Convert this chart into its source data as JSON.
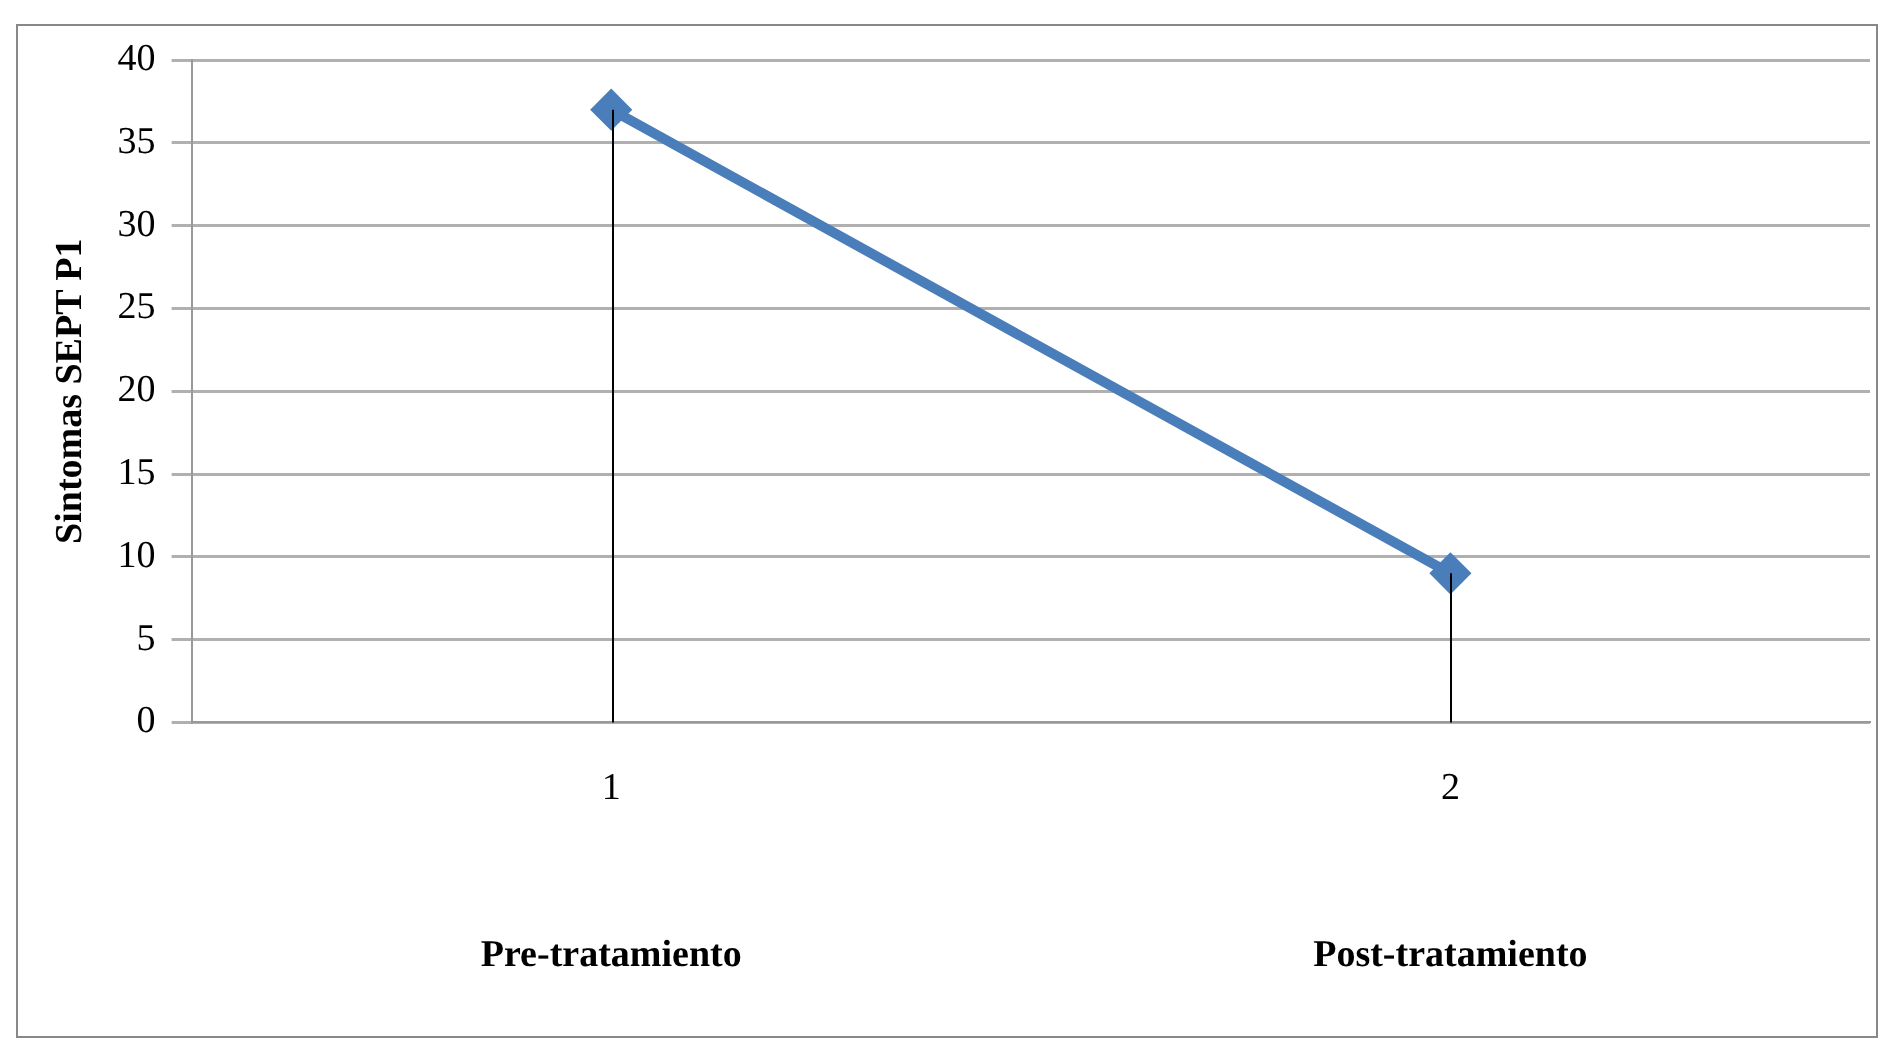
{
  "chart_data": {
    "type": "line",
    "ylabel": "Sintomas SEPT P1",
    "categories": [
      "1",
      "2"
    ],
    "series": [
      {
        "color": "#4a7ebb",
        "values": [
          37,
          9
        ],
        "errors": [
          [
            0,
            37
          ],
          [
            0,
            9
          ]
        ]
      }
    ],
    "ylim": [
      0,
      40
    ],
    "yticks": [
      0,
      5,
      10,
      15,
      20,
      25,
      30,
      35,
      40
    ],
    "grid": "y",
    "legend": false,
    "marker": "diamond",
    "line_style": "solid",
    "annotations": [
      "Pre-tratamiento",
      "Post-tratamiento"
    ]
  }
}
